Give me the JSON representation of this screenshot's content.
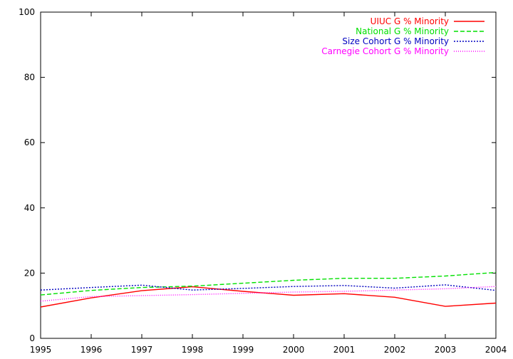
{
  "chart_data": {
    "type": "line",
    "title": "",
    "xlabel": "",
    "ylabel": "",
    "x": [
      1995,
      1996,
      1997,
      1998,
      1999,
      2000,
      2001,
      2002,
      2003,
      2004
    ],
    "xlim": [
      1995,
      2004
    ],
    "ylim": [
      0,
      100
    ],
    "xticks": [
      "1995",
      "1996",
      "1997",
      "1998",
      "1999",
      "2000",
      "2001",
      "2002",
      "2003",
      "2004"
    ],
    "yticks": [
      "0",
      "20",
      "40",
      "60",
      "80",
      "100"
    ],
    "grid": false,
    "legend_position": "top-right",
    "series": [
      {
        "name": "UIUC G % Minority",
        "color": "#ff0000",
        "dash": "solid",
        "values": [
          9.6,
          12.4,
          14.6,
          15.8,
          14.4,
          13.2,
          13.7,
          12.6,
          9.8,
          10.8
        ]
      },
      {
        "name": "National G % Minority",
        "color": "#00e000",
        "dash": "dashed",
        "values": [
          13.3,
          14.7,
          15.6,
          16.0,
          16.9,
          17.8,
          18.4,
          18.4,
          19.1,
          20.2
        ]
      },
      {
        "name": "Size Cohort G % Minority",
        "color": "#0000c0",
        "dash": "dotted-dense",
        "values": [
          14.8,
          15.6,
          16.3,
          14.8,
          15.3,
          15.9,
          16.2,
          15.4,
          16.4,
          14.7
        ]
      },
      {
        "name": "Carnegie Cohort G % Minority",
        "color": "#ff00ff",
        "dash": "dotted",
        "values": [
          11.4,
          12.8,
          13.1,
          13.4,
          13.8,
          14.2,
          14.4,
          14.8,
          15.2,
          15.9
        ]
      }
    ]
  }
}
